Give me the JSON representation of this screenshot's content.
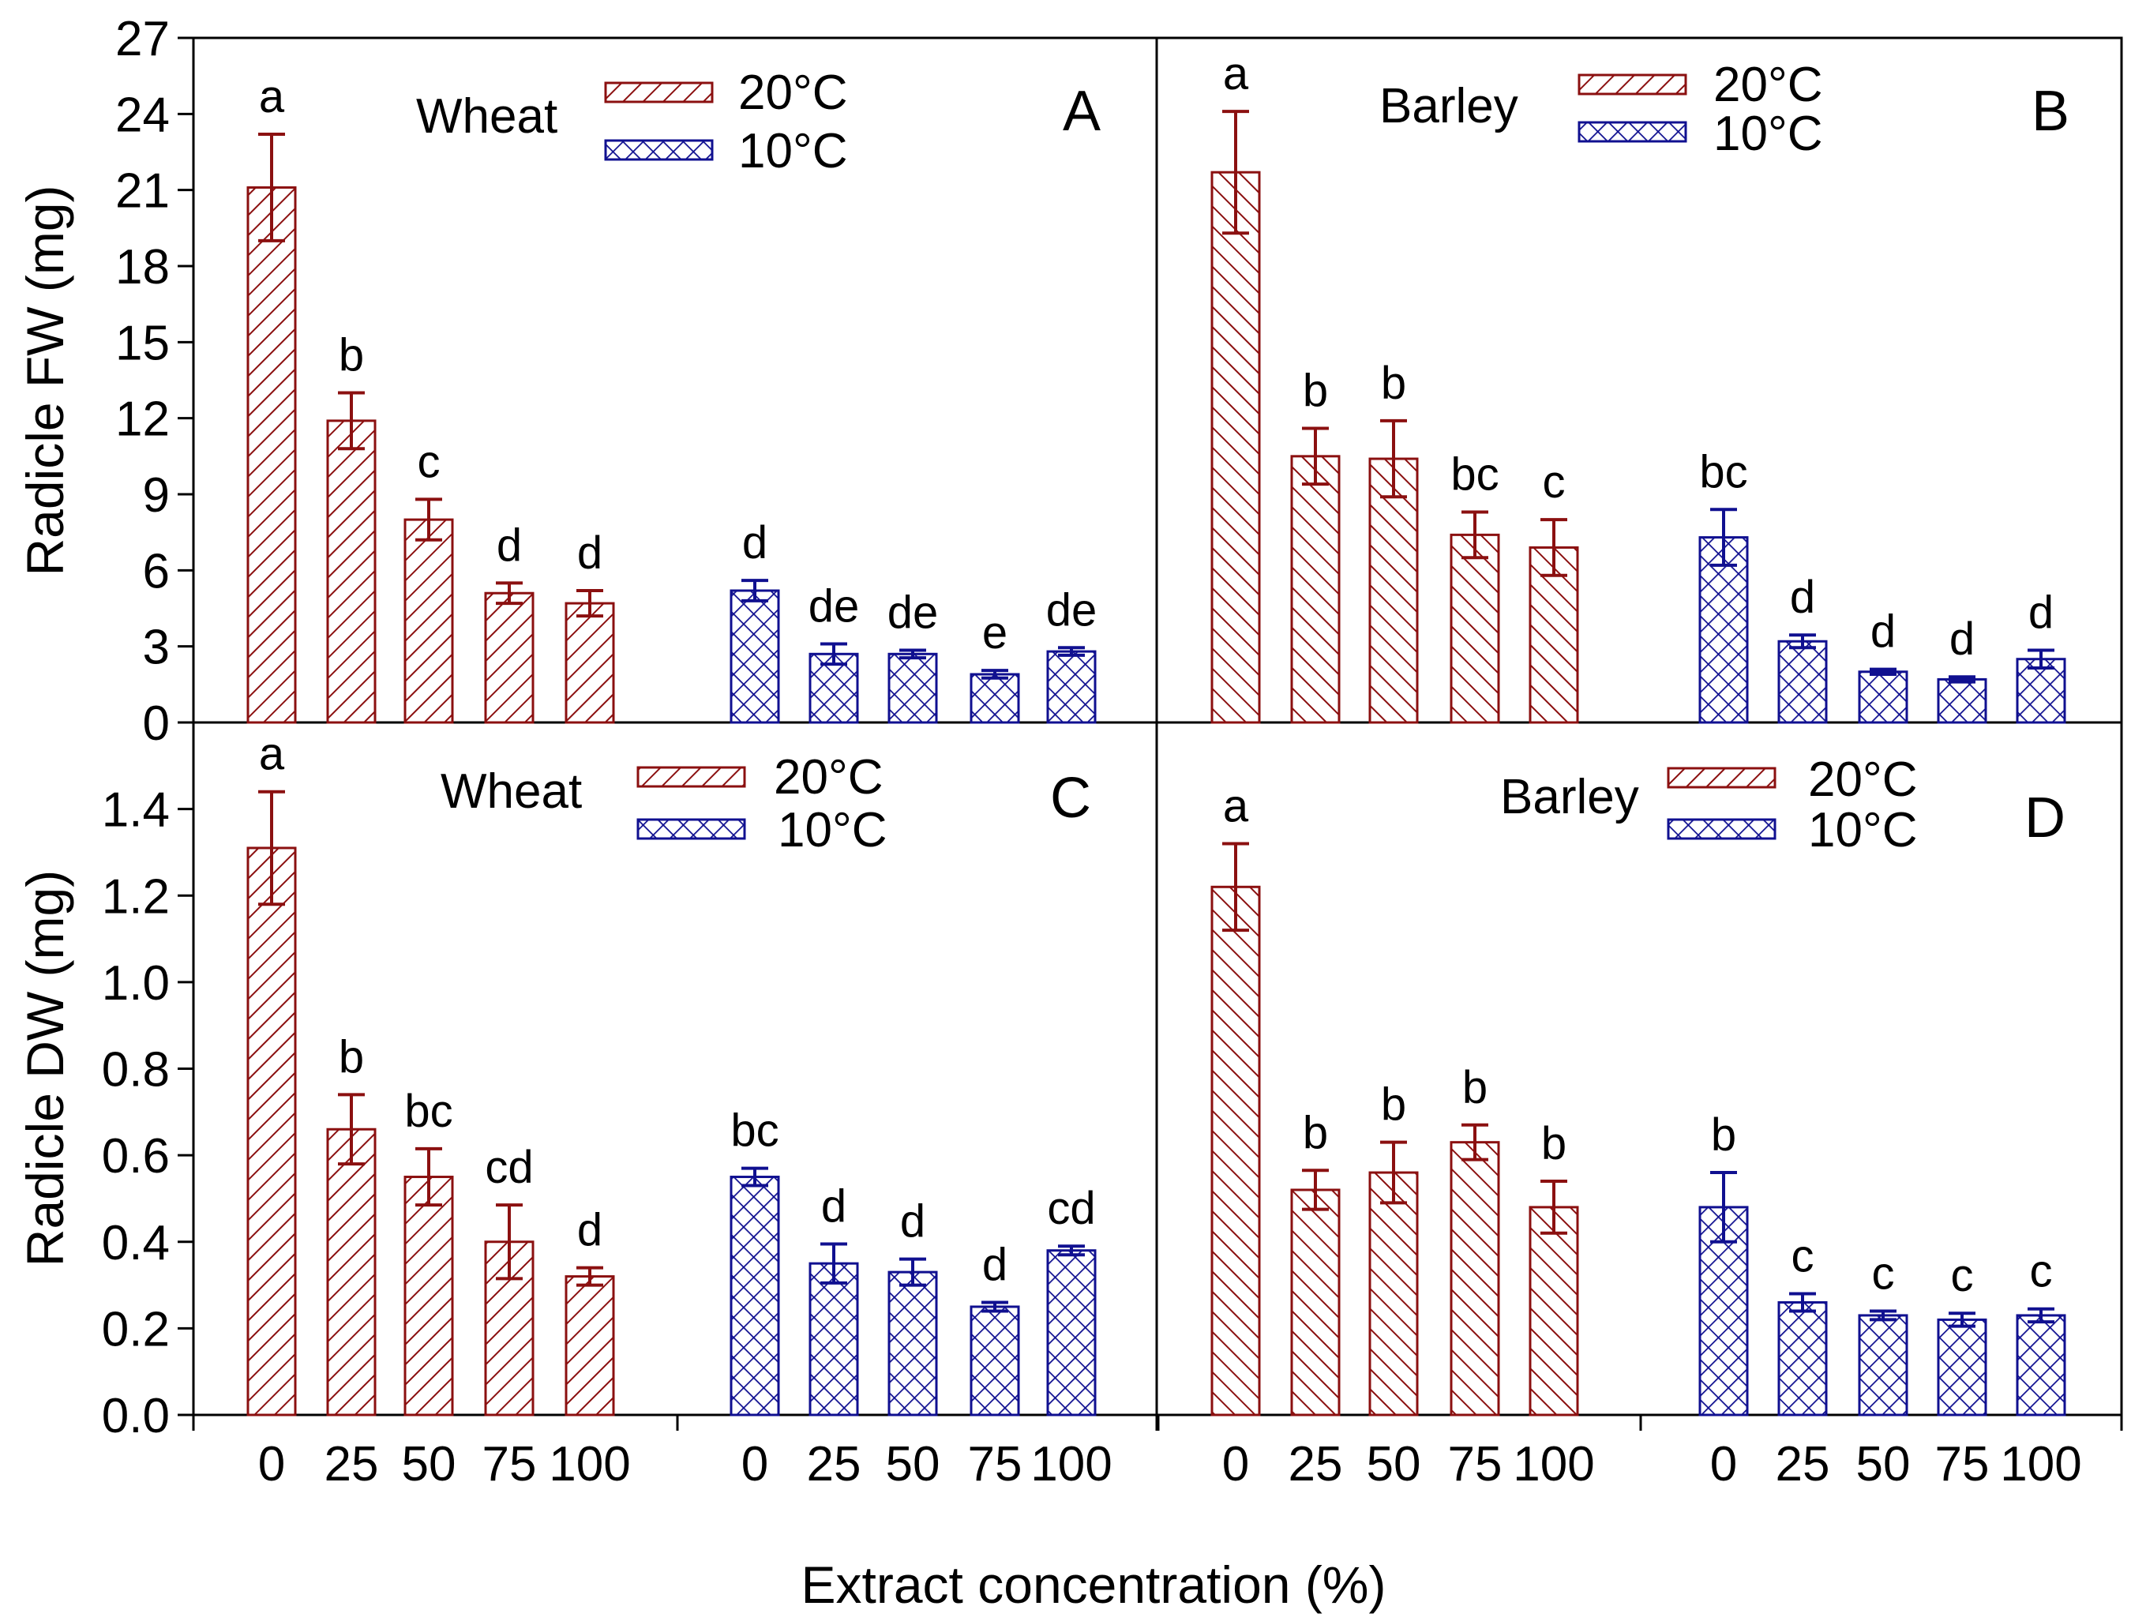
{
  "figure": {
    "x_axis_title": "Extract concentration (%)",
    "colors": {
      "warm": "#8b1010",
      "cold": "#101090"
    },
    "legend": {
      "warm_label": "20°C",
      "cold_label": "10°C"
    }
  },
  "chart_data": [
    {
      "type": "bar",
      "panel": "A",
      "crop": "Wheat",
      "ylabel": "Radicle FW (mg)",
      "ylim": [
        0,
        27
      ],
      "yticks": [
        0,
        3,
        6,
        9,
        12,
        15,
        18,
        21,
        24,
        27
      ],
      "ytick_labels": [
        "0",
        "3",
        "6",
        "9",
        "12",
        "15",
        "18",
        "21",
        "24",
        "27"
      ],
      "categories": [
        "0",
        "25",
        "50",
        "75",
        "100"
      ],
      "series": [
        {
          "name": "20°C",
          "values": [
            21.1,
            11.9,
            8.0,
            5.1,
            4.7
          ],
          "errors": [
            2.1,
            1.1,
            0.8,
            0.4,
            0.5
          ],
          "letters": [
            "a",
            "b",
            "c",
            "d",
            "d"
          ]
        },
        {
          "name": "10°C",
          "values": [
            5.2,
            2.7,
            2.7,
            1.9,
            2.8
          ],
          "errors": [
            0.4,
            0.4,
            0.15,
            0.15,
            0.15
          ],
          "letters": [
            "d",
            "de",
            "de",
            "e",
            "de"
          ]
        }
      ]
    },
    {
      "type": "bar",
      "panel": "B",
      "crop": "Barley",
      "ylabel": "",
      "ylim": [
        0,
        27
      ],
      "categories": [
        "0",
        "25",
        "50",
        "75",
        "100"
      ],
      "series": [
        {
          "name": "20°C",
          "values": [
            21.7,
            10.5,
            10.4,
            7.4,
            6.9
          ],
          "errors": [
            2.4,
            1.1,
            1.5,
            0.9,
            1.1
          ],
          "letters": [
            "a",
            "b",
            "b",
            "bc",
            "c"
          ]
        },
        {
          "name": "10°C",
          "values": [
            7.3,
            3.2,
            2.0,
            1.7,
            2.5
          ],
          "errors": [
            1.1,
            0.25,
            0.1,
            0.1,
            0.35
          ],
          "letters": [
            "bc",
            "d",
            "d",
            "d",
            "d"
          ]
        }
      ]
    },
    {
      "type": "bar",
      "panel": "C",
      "crop": "Wheat",
      "ylabel": "Radicle DW (mg)",
      "ylim": [
        0,
        1.6
      ],
      "yticks": [
        0,
        0.2,
        0.4,
        0.6,
        0.8,
        1.0,
        1.2,
        1.4
      ],
      "ytick_labels": [
        "0.0",
        "0.2",
        "0.4",
        "0.6",
        "0.8",
        "1.0",
        "1.2",
        "1.4"
      ],
      "categories": [
        "0",
        "25",
        "50",
        "75",
        "100"
      ],
      "series": [
        {
          "name": "20°C",
          "values": [
            1.31,
            0.66,
            0.55,
            0.4,
            0.32
          ],
          "errors": [
            0.13,
            0.08,
            0.065,
            0.085,
            0.02
          ],
          "letters": [
            "a",
            "b",
            "bc",
            "cd",
            "d"
          ]
        },
        {
          "name": "10°C",
          "values": [
            0.55,
            0.35,
            0.33,
            0.25,
            0.38
          ],
          "errors": [
            0.02,
            0.045,
            0.03,
            0.01,
            0.01
          ],
          "letters": [
            "bc",
            "d",
            "d",
            "d",
            "cd"
          ]
        }
      ]
    },
    {
      "type": "bar",
      "panel": "D",
      "crop": "Barley",
      "ylabel": "",
      "ylim": [
        0,
        1.6
      ],
      "categories": [
        "0",
        "25",
        "50",
        "75",
        "100"
      ],
      "series": [
        {
          "name": "20°C",
          "values": [
            1.22,
            0.52,
            0.56,
            0.63,
            0.48
          ],
          "errors": [
            0.1,
            0.045,
            0.07,
            0.04,
            0.06
          ],
          "letters": [
            "a",
            "b",
            "b",
            "b",
            "b"
          ]
        },
        {
          "name": "10°C",
          "values": [
            0.48,
            0.26,
            0.23,
            0.22,
            0.23
          ],
          "errors": [
            0.08,
            0.02,
            0.01,
            0.015,
            0.015
          ],
          "letters": [
            "b",
            "c",
            "c",
            "c",
            "c"
          ]
        }
      ]
    }
  ]
}
